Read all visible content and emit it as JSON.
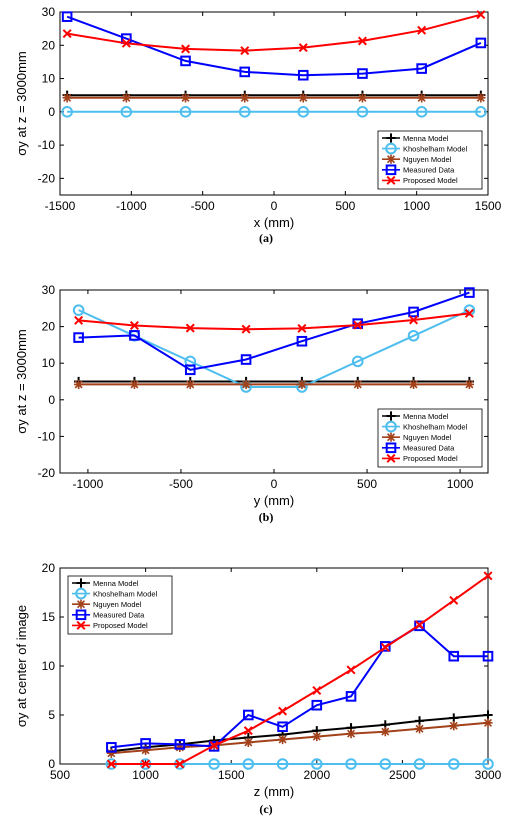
{
  "chart_data": [
    {
      "type": "line",
      "caption": "(a)",
      "xlabel": "x (mm)",
      "ylabel": "σy at z = 3000mm",
      "xlim": [
        -1500,
        1500
      ],
      "ylim": [
        -25,
        30
      ],
      "xticks": [
        -1500,
        -1000,
        -500,
        0,
        500,
        1000,
        1500
      ],
      "yticks": [
        -20,
        -10,
        0,
        10,
        20,
        30
      ],
      "legend_position": "bottom-right",
      "x": [
        -1450,
        -1035,
        -620,
        -205,
        205,
        620,
        1035,
        1450
      ],
      "series": [
        {
          "name": "Menna Model",
          "color": "#000000",
          "marker": "plus",
          "values": [
            5,
            5,
            5,
            5,
            5,
            5,
            5,
            5
          ]
        },
        {
          "name": "Khoshelham Model",
          "color": "#4dbeee",
          "marker": "circle",
          "values": [
            0,
            0,
            0,
            0,
            0,
            0,
            0,
            0
          ]
        },
        {
          "name": "Nguyen Model",
          "color": "#a2411a",
          "marker": "star",
          "values": [
            4.2,
            4.2,
            4.2,
            4.2,
            4.2,
            4.2,
            4.2,
            4.2
          ]
        },
        {
          "name": "Measured Data",
          "color": "#0000ff",
          "marker": "square",
          "values": [
            28.6,
            22,
            15.3,
            12,
            11,
            11.5,
            13,
            20.7
          ]
        },
        {
          "name": "Proposed Model",
          "color": "#ff0000",
          "marker": "x",
          "values": [
            23.5,
            20.6,
            18.9,
            18.4,
            19.3,
            21.3,
            24.5,
            29.2
          ]
        }
      ]
    },
    {
      "type": "line",
      "caption": "(b)",
      "xlabel": "y (mm)",
      "ylabel": "σy at z = 3000mm",
      "xlim": [
        -1150,
        1150
      ],
      "ylim": [
        -20,
        30
      ],
      "xticks": [
        -1000,
        -500,
        0,
        500,
        1000
      ],
      "yticks": [
        -20,
        -10,
        0,
        10,
        20,
        30
      ],
      "legend_position": "bottom-right",
      "x": [
        -1050,
        -750,
        -450,
        -150,
        150,
        450,
        750,
        1050
      ],
      "series": [
        {
          "name": "Menna Model",
          "color": "#000000",
          "marker": "plus",
          "values": [
            5,
            5,
            5,
            5,
            5,
            5,
            5,
            5
          ]
        },
        {
          "name": "Khoshelham Model",
          "color": "#4dbeee",
          "marker": "circle",
          "values": [
            24.5,
            17.5,
            10.5,
            3.5,
            3.5,
            10.5,
            17.5,
            24.5
          ]
        },
        {
          "name": "Nguyen Model",
          "color": "#a2411a",
          "marker": "star",
          "values": [
            4.2,
            4.2,
            4.2,
            4.2,
            4.2,
            4.2,
            4.2,
            4.2
          ]
        },
        {
          "name": "Measured Data",
          "color": "#0000ff",
          "marker": "square",
          "values": [
            17,
            17.6,
            8.2,
            11,
            16,
            20.8,
            24,
            29.3
          ]
        },
        {
          "name": "Proposed Model",
          "color": "#ff0000",
          "marker": "x",
          "values": [
            21.7,
            20.3,
            19.6,
            19.3,
            19.5,
            20.4,
            21.8,
            23.6
          ]
        }
      ]
    },
    {
      "type": "line",
      "caption": "(c)",
      "xlabel": "z (mm)",
      "ylabel": "σy at center of image",
      "xlim": [
        500,
        3000
      ],
      "ylim": [
        0,
        20
      ],
      "xticks": [
        500,
        1000,
        1500,
        2000,
        2500,
        3000
      ],
      "yticks": [
        0,
        5,
        10,
        15,
        20
      ],
      "legend_position": "top-left",
      "x": [
        800,
        1000,
        1200,
        1400,
        1600,
        1800,
        2000,
        2200,
        2400,
        2600,
        2800,
        3000
      ],
      "series": [
        {
          "name": "Menna Model",
          "color": "#000000",
          "marker": "plus",
          "values": [
            1.3,
            1.7,
            2.0,
            2.4,
            2.7,
            3.0,
            3.4,
            3.7,
            4.0,
            4.4,
            4.7,
            5.0
          ]
        },
        {
          "name": "Khoshelham Model",
          "color": "#4dbeee",
          "marker": "circle",
          "values": [
            0,
            0,
            0,
            0,
            0,
            0,
            0,
            0,
            0,
            0,
            0,
            0
          ]
        },
        {
          "name": "Nguyen Model",
          "color": "#a2411a",
          "marker": "star",
          "values": [
            1.1,
            1.4,
            1.7,
            1.9,
            2.2,
            2.5,
            2.8,
            3.1,
            3.3,
            3.6,
            3.9,
            4.2
          ]
        },
        {
          "name": "Measured Data",
          "color": "#0000ff",
          "marker": "square",
          "values": [
            1.7,
            2.1,
            2.0,
            1.8,
            5.0,
            3.8,
            6.0,
            6.9,
            12.0,
            14.1,
            11.0,
            11.0
          ]
        },
        {
          "name": "Proposed Model",
          "color": "#ff0000",
          "marker": "x",
          "values": [
            0,
            0,
            0,
            1.9,
            3.4,
            5.4,
            7.5,
            9.6,
            11.9,
            14.2,
            16.7,
            19.2
          ]
        }
      ]
    }
  ]
}
